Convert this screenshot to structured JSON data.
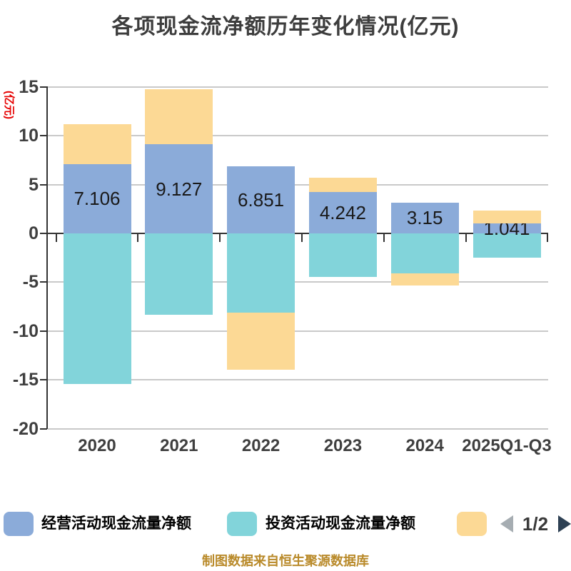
{
  "title": "各项现金流净额历年变化情况(亿元)",
  "y_axis_name": "(亿元)",
  "caption": "制图数据来自恒生聚源数据库",
  "colors": {
    "title": "#3d3d3d",
    "axis": "#333333",
    "grid": "#c9c9c9",
    "tick_label": "#3f3f3f",
    "bar_label": "#1a1a1a",
    "y_axis_name": "#e60000",
    "caption": "#b98a2a",
    "operating_blue": "#8babd9",
    "investing_teal": "#82d4da",
    "financing_orange": "#fcd995",
    "pager_prev": "#a6adb2",
    "pager_next": "#2e4154",
    "pager_text": "#3a3a3a"
  },
  "legend": {
    "items": [
      {
        "label": "经营活动现金流量净额",
        "color": "#8babd9"
      },
      {
        "label": "投资活动现金流量净额",
        "color": "#82d4da"
      },
      {
        "label": "",
        "color": "#fcd995"
      }
    ],
    "pager": {
      "current": "1/2",
      "prev_color": "#a6adb2",
      "next_color": "#2e4154"
    }
  },
  "chart_data": {
    "type": "bar",
    "stacked": true,
    "grid": true,
    "legend_position": "bottom",
    "title": "各项现金流净额历年变化情况(亿元)",
    "ylabel": "(亿元)",
    "ylim": [
      -20,
      15
    ],
    "yticks": [
      15,
      10,
      5,
      0,
      -5,
      -10,
      -15,
      -20
    ],
    "categories": [
      "2020",
      "2021",
      "2022",
      "2023",
      "2024",
      "2025Q1-Q3"
    ],
    "series": [
      {
        "name": "经营活动现金流量净额",
        "color": "#8babd9",
        "values": [
          7.106,
          9.127,
          6.851,
          4.242,
          3.15,
          1.041
        ],
        "labels": [
          "7.106",
          "9.127",
          "6.851",
          "4.242",
          "3.15",
          "1.041"
        ]
      },
      {
        "name": "投资活动现金流量净额",
        "color": "#82d4da",
        "values": [
          -15.4,
          -8.3,
          -8.1,
          -4.45,
          -4.1,
          -2.5
        ]
      },
      {
        "name": "",
        "color": "#fcd995",
        "values": [
          4.1,
          5.62,
          -5.85,
          1.45,
          -1.25,
          1.31
        ]
      }
    ]
  }
}
